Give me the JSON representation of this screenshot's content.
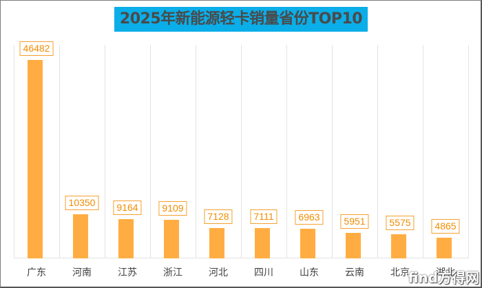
{
  "chart_data": {
    "type": "bar",
    "title": "2025年新能源轻卡销量省份TOP10",
    "categories": [
      "广东",
      "河南",
      "江苏",
      "浙江",
      "河北",
      "四川",
      "山东",
      "云南",
      "北京",
      "湖北"
    ],
    "values": [
      46482,
      10350,
      9164,
      9109,
      7128,
      7111,
      6963,
      5951,
      5575,
      4865
    ],
    "xlabel": "",
    "ylabel": "",
    "ylim": [
      0,
      50000
    ],
    "grid": "vertical category separators",
    "legend": "none",
    "data_labels": true,
    "bar_color": "#ffad42",
    "label_color": "#f28c00",
    "title_bg_color": "#0aaee8"
  },
  "title": "2025年新能源轻卡销量省份TOP10",
  "watermark": "find方得网"
}
